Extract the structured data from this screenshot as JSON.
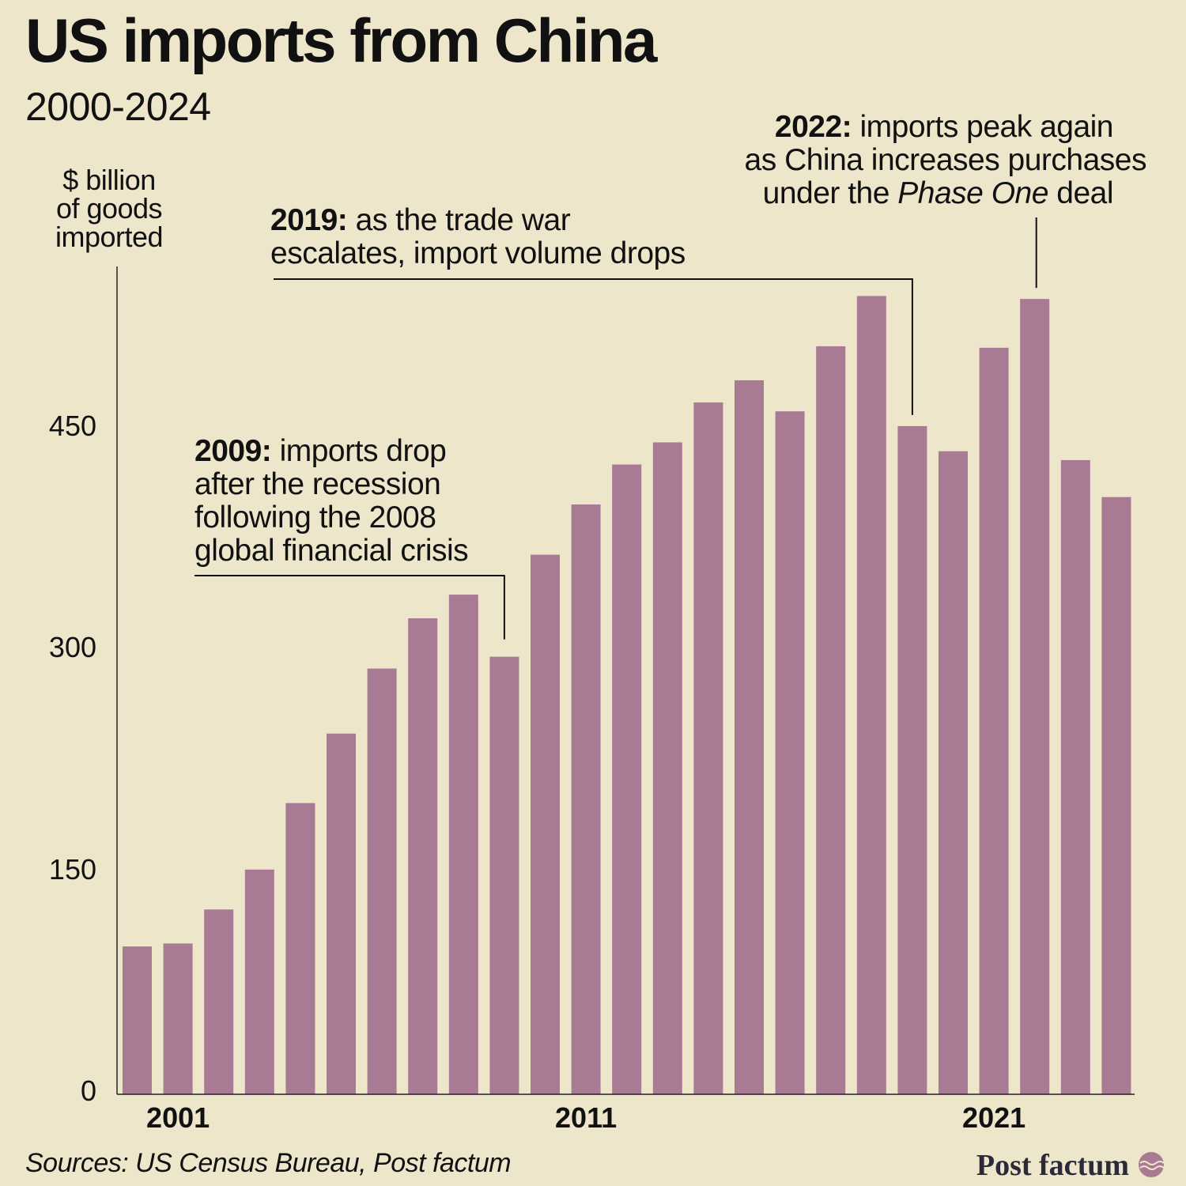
{
  "header": {
    "title": "US imports from China",
    "subtitle": "2000-2024"
  },
  "yaxis_label_lines": [
    "$ billion",
    "of goods",
    "imported"
  ],
  "annotations": {
    "a2009": {
      "year": "2009:",
      "lines": [
        " imports drop",
        "after the recession",
        "following the 2008",
        "global financial crisis"
      ]
    },
    "a2019": {
      "year": "2019:",
      "lines": [
        " as the trade war",
        "escalates, import volume drops"
      ]
    },
    "a2022": {
      "year": "2022:",
      "line1": " imports peak again",
      "line2": "as China increases purchases",
      "line3_pre": "under the ",
      "line3_em": "Phase One",
      "line3_post": " deal"
    }
  },
  "footer": {
    "source": "Sources: US Census Bureau, Post factum",
    "brand": "Post factum"
  },
  "colors": {
    "background": "#EDE6CB",
    "bar": "#A87A93",
    "text": "#111111",
    "axis": "#222222"
  },
  "chart_data": {
    "type": "bar",
    "title": "US imports from China",
    "subtitle": "2000-2024",
    "ylabel": "$ billion of goods imported",
    "xlabel": "",
    "ylim": [
      0,
      560
    ],
    "yticks": [
      0,
      150,
      300,
      450
    ],
    "xtick_labels": [
      "2001",
      "2011",
      "2021"
    ],
    "grid": false,
    "legend": "none",
    "categories": [
      "2000",
      "2001",
      "2002",
      "2003",
      "2004",
      "2005",
      "2006",
      "2007",
      "2008",
      "2009",
      "2010",
      "2011",
      "2012",
      "2013",
      "2014",
      "2015",
      "2016",
      "2017",
      "2018",
      "2019",
      "2020",
      "2021",
      "2022",
      "2023",
      "2024"
    ],
    "values": [
      100,
      102,
      125,
      152,
      197,
      244,
      288,
      322,
      338,
      296,
      365,
      399,
      426,
      441,
      468,
      483,
      462,
      506,
      540,
      452,
      435,
      505,
      538,
      429,
      404
    ]
  }
}
